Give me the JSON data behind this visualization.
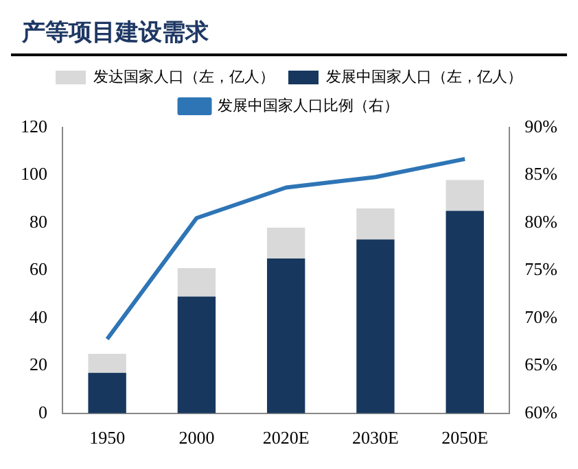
{
  "chart_data": {
    "type": "bar",
    "title": "产等项目建设需求",
    "categories": [
      "1950",
      "2000",
      "2020E",
      "2030E",
      "2050E"
    ],
    "series": [
      {
        "name": "发展中国家人口（左，亿人）",
        "color": "#17375e",
        "values": [
          17,
          49,
          65,
          73,
          85
        ]
      },
      {
        "name": "发达国家人口（左，亿人）",
        "color": "#d9d9d9",
        "values": [
          8,
          12,
          13,
          13,
          13
        ]
      },
      {
        "name": "发展中国家人口比例（右）",
        "color": "#2e75b6",
        "type": "line",
        "axis": "y2",
        "values": [
          67.8,
          80.5,
          83.7,
          84.8,
          86.7
        ]
      }
    ],
    "stacked": true,
    "ylim": [
      0,
      120
    ],
    "yticks": [
      0,
      20,
      40,
      60,
      80,
      100,
      120
    ],
    "y2lim": [
      60,
      90
    ],
    "y2ticks": [
      {
        "value": 60,
        "label": "60%"
      },
      {
        "value": 65,
        "label": "65%"
      },
      {
        "value": 70,
        "label": "70%"
      },
      {
        "value": 75,
        "label": "75%"
      },
      {
        "value": 80,
        "label": "80%"
      },
      {
        "value": 85,
        "label": "85%"
      },
      {
        "value": 90,
        "label": "90%"
      }
    ],
    "grid": false,
    "legend": "top",
    "marker": "none"
  }
}
